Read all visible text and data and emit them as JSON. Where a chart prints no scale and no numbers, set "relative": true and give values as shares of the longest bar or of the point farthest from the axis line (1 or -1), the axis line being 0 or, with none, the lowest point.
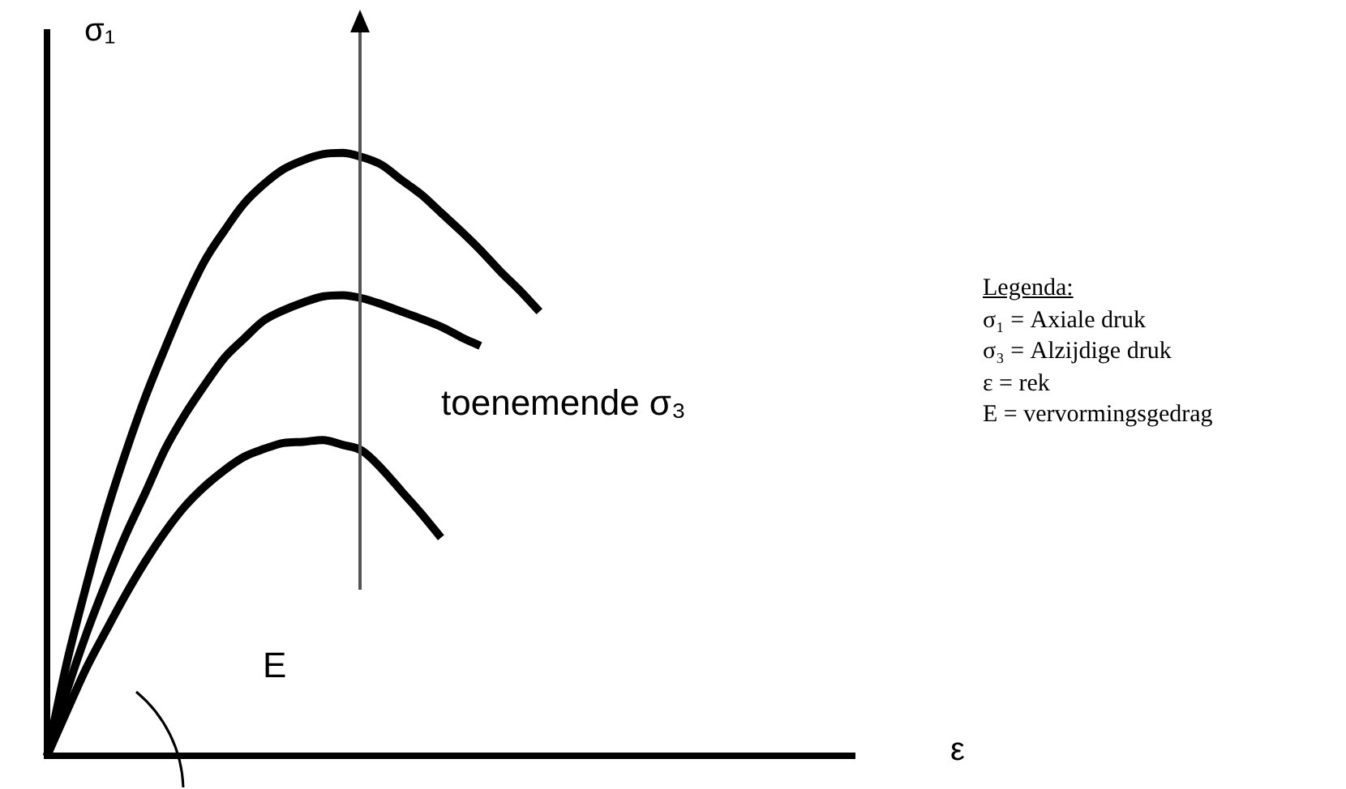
{
  "chart_data": {
    "type": "line",
    "relative": true,
    "xlabel": "ε",
    "ylabel": "σ₁",
    "marker": "none",
    "grid": false,
    "legend": false,
    "categories": [
      null,
      null,
      null,
      null,
      null,
      null,
      null,
      null,
      null,
      null,
      null,
      null,
      null,
      null,
      null,
      null,
      null,
      null,
      null,
      null,
      null,
      null,
      null,
      null,
      null,
      null,
      null,
      null,
      null,
      null,
      null,
      null,
      null,
      null,
      null,
      null,
      null,
      null,
      null,
      null,
      null,
      null
    ],
    "series": [
      {
        "color": "#000000",
        "values": [
          0,
          0.154,
          0.283,
          0.402,
          0.504,
          0.596,
          0.677,
          0.754,
          0.821,
          0.871,
          0.916,
          0.948,
          0.973,
          0.988,
          0.998,
          1,
          0.993,
          0.98,
          0.955,
          0.931,
          0.901,
          0.871,
          0.839,
          0.804,
          0.772,
          0.737,
          null,
          null,
          null,
          null,
          null,
          null,
          null,
          null,
          null,
          null,
          null,
          null,
          null,
          null,
          null,
          null
        ]
      },
      {
        "color": "#000000",
        "values": [
          0,
          0.107,
          0.203,
          0.288,
          0.367,
          0.437,
          0.509,
          0.566,
          0.615,
          0.66,
          0.692,
          0.722,
          0.739,
          0.752,
          0.762,
          0.764,
          0.759,
          0.749,
          0.737,
          0.725,
          0.712,
          0.695,
          0.68,
          null,
          null,
          null,
          null,
          null,
          null,
          null,
          null,
          null,
          null,
          null,
          null,
          null,
          null,
          null,
          null,
          null,
          null,
          null
        ]
      },
      {
        "color": "#000000",
        "values": [
          0,
          0.074,
          0.146,
          0.208,
          0.268,
          0.323,
          0.372,
          0.414,
          0.447,
          0.474,
          0.496,
          0.509,
          0.519,
          0.521,
          0.524,
          0.516,
          0.506,
          0.476,
          0.439,
          0.402,
          0.362,
          null,
          null,
          null,
          null,
          null,
          null,
          null,
          null,
          null,
          null,
          null,
          null,
          null,
          null,
          null,
          null,
          null,
          null,
          null,
          null,
          null
        ]
      }
    ],
    "annotations": [
      "toenemende σ₃",
      "E",
      "Legenda:",
      "σ₁ = Axiale druk",
      "σ₃ = Alzijdige druk",
      "ε = rek",
      "E = vervormingsgedrag"
    ]
  }
}
